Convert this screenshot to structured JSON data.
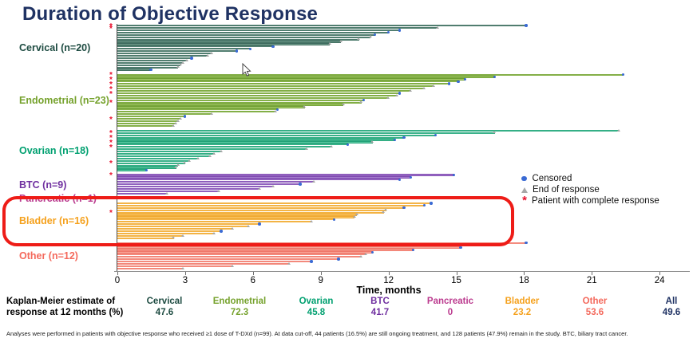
{
  "title": "Duration of Objective Response",
  "chart_data": {
    "type": "swimmer",
    "xlabel": "Time, months",
    "x_ticks": [
      0,
      3,
      6,
      9,
      12,
      15,
      18,
      21,
      24
    ],
    "xlim": [
      0,
      24
    ],
    "legend": [
      {
        "label": "Censored",
        "marker": "dot",
        "color": "#3a6ad4"
      },
      {
        "label": "End of response",
        "marker": "triangle",
        "color": "#a8a8a8"
      },
      {
        "label": "Patient with complete response",
        "marker": "asterisk",
        "color": "#e8112d"
      }
    ],
    "groups": [
      {
        "name": "Cervical",
        "label": "Cervical (n=20)",
        "km_12mo": "47.6",
        "text_color": "#1d4b41",
        "bar_dark": "#1d4b41",
        "bar_light": "#74a08f",
        "months": [
          18.1,
          14.2,
          12.5,
          12.0,
          11.4,
          11.2,
          10.7,
          9.9,
          9.4,
          6.9,
          5.9,
          5.3,
          4.2,
          4.0,
          3.3,
          3.1,
          2.9,
          2.8,
          2.7,
          1.5
        ],
        "markers": [
          "c",
          "t",
          "c",
          "c",
          "c",
          "t",
          "t",
          "t",
          "t",
          "c",
          "c",
          "c",
          "t",
          "t",
          "c",
          "t",
          "t",
          "t",
          "t",
          "c"
        ],
        "complete_response_rows": [
          0,
          1
        ]
      },
      {
        "name": "Endometrial",
        "label": "Endometrial (n=23)",
        "km_12mo": "72.3",
        "text_color": "#76a22d",
        "bar_dark": "#4e8212",
        "bar_light": "#a9cf6d",
        "months": [
          22.4,
          16.7,
          15.4,
          15.1,
          14.7,
          14.0,
          13.6,
          13.0,
          12.5,
          12.4,
          12.0,
          10.9,
          10.8,
          10.0,
          8.3,
          7.1,
          7.0,
          4.2,
          3.0,
          2.8,
          2.7,
          2.6,
          2.5
        ],
        "markers": [
          "c",
          "c",
          "c",
          "c",
          "c",
          "t",
          "t",
          "t",
          "c",
          "t",
          "t",
          "c",
          "t",
          "t",
          "t",
          "c",
          "t",
          "t",
          "c",
          "t",
          "t",
          "t",
          "t"
        ],
        "complete_response_rows": [
          0,
          2,
          4,
          6,
          8,
          12,
          19
        ]
      },
      {
        "name": "Ovarian",
        "label": "Ovarian (n=18)",
        "km_12mo": "45.8",
        "text_color": "#00a070",
        "bar_dark": "#008a5e",
        "bar_light": "#5ecba4",
        "months": [
          22.2,
          16.7,
          14.1,
          12.7,
          12.3,
          11.3,
          10.2,
          9.5,
          8.4,
          4.6,
          4.3,
          4.1,
          3.6,
          3.2,
          3.0,
          2.7,
          2.6,
          1.3
        ],
        "markers": [
          "t",
          "t",
          "c",
          "c",
          "c",
          "t",
          "c",
          "t",
          "t",
          "t",
          "t",
          "t",
          "t",
          "t",
          "t",
          "t",
          "t",
          "c"
        ],
        "complete_response_rows": [
          1,
          3,
          5,
          7,
          14
        ]
      },
      {
        "name": "BTC",
        "label": "BTC (n=9)",
        "km_12mo": "41.7",
        "text_color": "#7030a0",
        "bar_dark": "#6a2fa0",
        "bar_light": "#a77fd0",
        "months": [
          14.9,
          13.0,
          12.5,
          8.7,
          8.1,
          6.9,
          6.3,
          4.5,
          2.2
        ],
        "markers": [
          "c",
          "c",
          "c",
          "t",
          "c",
          "t",
          "t",
          "t",
          "t"
        ],
        "complete_response_rows": [
          0
        ]
      },
      {
        "name": "Pancreatic",
        "label": "Pancreatic (n=1)",
        "km_12mo": "0",
        "text_color": "#bb3a8e",
        "bar_dark": "#c2478f",
        "bar_light": "#e79ec9",
        "months": [
          4.2
        ],
        "markers": [
          "t"
        ],
        "complete_response_rows": []
      },
      {
        "name": "Bladder",
        "label": "Bladder (n=16)",
        "km_12mo": "23.2",
        "text_color": "#f5a11d",
        "bar_dark": "#e8950f",
        "bar_light": "#fcc96a",
        "months": [
          13.9,
          13.6,
          12.7,
          11.9,
          11.8,
          10.6,
          10.5,
          9.6,
          8.6,
          6.3,
          5.8,
          5.1,
          4.6,
          4.3,
          2.9,
          2.5
        ],
        "markers": [
          "c",
          "c",
          "c",
          "t",
          "t",
          "t",
          "t",
          "c",
          "t",
          "c",
          "t",
          "t",
          "c",
          "t",
          "t",
          "t"
        ],
        "complete_response_rows": [
          4
        ]
      },
      {
        "name": "Other",
        "label": "Other (n=12)",
        "km_12mo": "53.6",
        "text_color": "#f4695c",
        "bar_dark": "#e85c4e",
        "bar_light": "#faa89b",
        "months": [
          18.1,
          16.6,
          15.2,
          13.1,
          11.3,
          11.0,
          10.8,
          9.8,
          8.6,
          7.6,
          5.1,
          2.9
        ],
        "markers": [
          "c",
          "c",
          "c",
          "c",
          "c",
          "t",
          "t",
          "c",
          "c",
          "t",
          "t",
          "t"
        ],
        "complete_response_rows": []
      }
    ]
  },
  "km_table": {
    "label_line1": "Kaplan-Meier estimate of",
    "label_line2": "response at 12 months (%)",
    "all_label": "All",
    "all_value": "49.6",
    "all_color": "#1f3263"
  },
  "footnote": "Analyses were performed in patients with objective response who received ≥1 dose of T-DXd (n=99). At data cut-off, 44 patients (16.5%) are still ongoing treatment, and 128 patients (47.9%) remain in the study. BTC, biliary tract cancer.",
  "highlight": {
    "shape": "rounded-rectangle",
    "color": "#ee1c17",
    "target": "Bladder (n=16)"
  }
}
